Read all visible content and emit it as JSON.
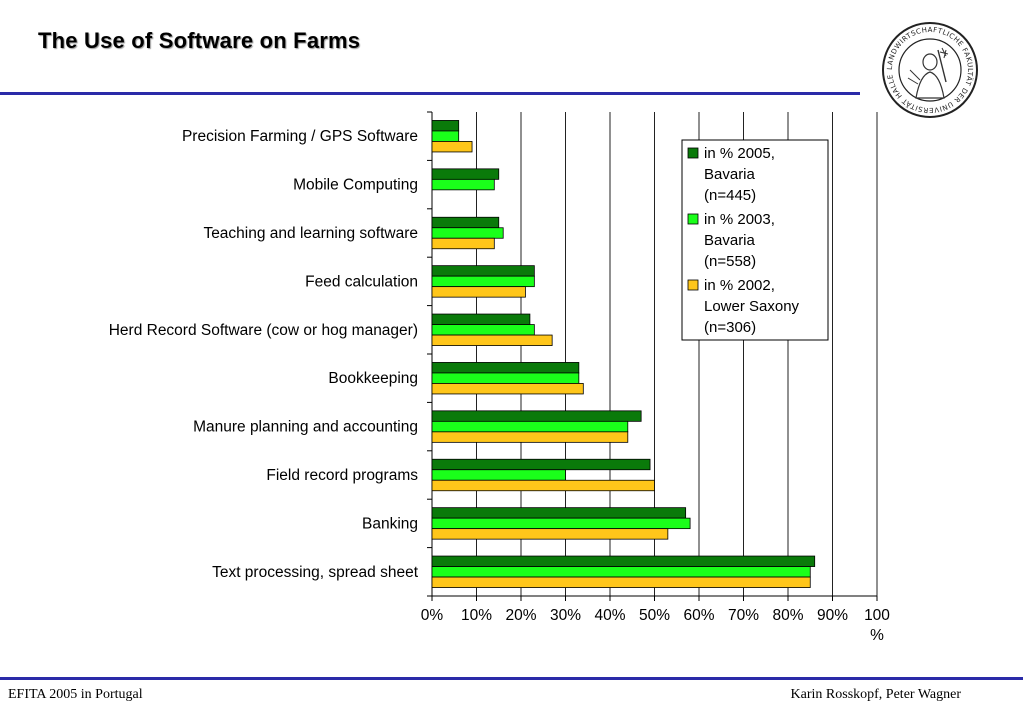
{
  "slide": {
    "title": "The Use of Software on Farms",
    "footer_left": "EFITA 2005 in Portugal",
    "footer_right": "Karin Rosskopf, Peter Wagner"
  },
  "seal": {
    "ring_text": "LANDWIRTSCHAFTLICHE FAKULTÄT DER UNIVERSITÄT HALLE"
  },
  "chart_data": {
    "type": "bar",
    "orientation": "horizontal",
    "title": "",
    "categories": [
      "Precision Farming / GPS Software",
      "Mobile Computing",
      "Teaching and learning software",
      "Feed calculation",
      "Herd Record Software (cow or hog manager)",
      "Bookkeeping",
      "Manure planning and accounting",
      "Field record programs",
      "Banking",
      "Text processing, spread sheet"
    ],
    "series": [
      {
        "name": "in % 2005, Bavaria (n=445)",
        "legend_lines": [
          "in % 2005,",
          "Bavaria",
          "(n=445)"
        ],
        "color": "#0a7a0a",
        "values": [
          6,
          15,
          15,
          23,
          22,
          33,
          47,
          49,
          57,
          86
        ]
      },
      {
        "name": "in % 2003, Bavaria (n=558)",
        "legend_lines": [
          "in % 2003,",
          " Bavaria",
          " (n=558)"
        ],
        "color": "#1aff1a",
        "values": [
          6,
          14,
          16,
          23,
          23,
          33,
          44,
          30,
          58,
          85
        ]
      },
      {
        "name": "in % 2002, Lower Saxony (n=306)",
        "legend_lines": [
          "in % 2002,",
          "Lower Saxony",
          "(n=306)"
        ],
        "color": "#ffc61a",
        "values": [
          9,
          null,
          14,
          21,
          27,
          34,
          44,
          50,
          53,
          85
        ]
      }
    ],
    "xlim": [
      0,
      100
    ],
    "xticks": [
      "0%",
      "10%",
      "20%",
      "30%",
      "40%",
      "50%",
      "60%",
      "70%",
      "80%",
      "90%",
      "100"
    ],
    "xlabel": "%",
    "grid": "vertical",
    "legend_position": "top-right"
  }
}
